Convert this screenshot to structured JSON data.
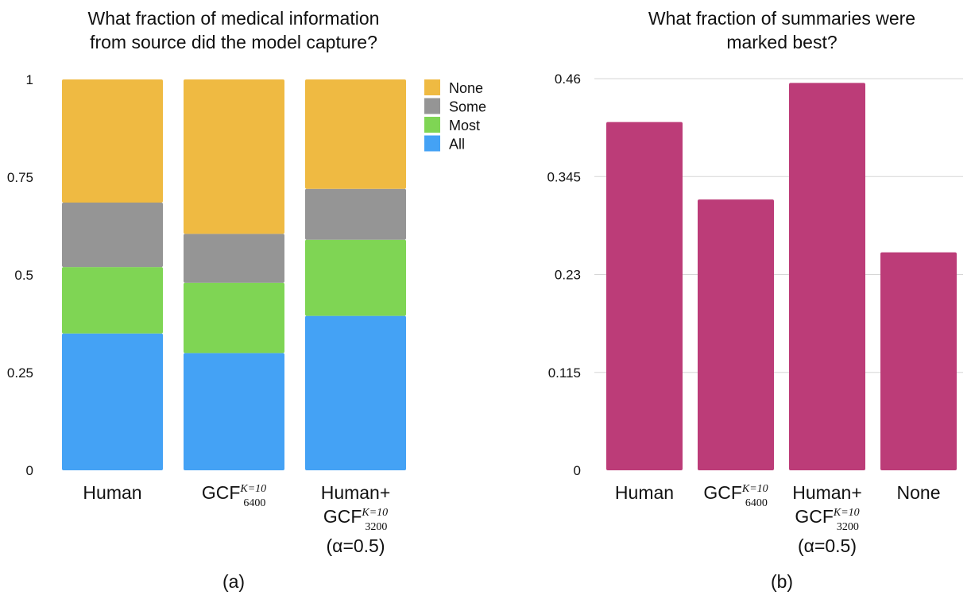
{
  "chart_data": [
    {
      "type": "bar",
      "stacked": true,
      "title": [
        "What fraction of medical information",
        "from source did the model capture?"
      ],
      "panel_label": "(a)",
      "categories": [
        {
          "parts": [
            {
              "t": "Human"
            }
          ]
        },
        {
          "parts": [
            {
              "t": "GCF"
            },
            {
              "sup": "K=10",
              "sub": "6400"
            }
          ]
        },
        {
          "parts": [
            {
              "t": "Human+"
            }
          ],
          "line2": [
            {
              "t": "GCF"
            },
            {
              "sup": "K=10",
              "sub": "3200"
            }
          ],
          "line3": "(α=0.5)"
        }
      ],
      "series": [
        {
          "name": "All",
          "color": "#44a2f5",
          "values": [
            0.35,
            0.3,
            0.395
          ]
        },
        {
          "name": "Most",
          "color": "#7fd554",
          "values": [
            0.17,
            0.18,
            0.195
          ]
        },
        {
          "name": "Some",
          "color": "#959595",
          "values": [
            0.165,
            0.125,
            0.13
          ]
        },
        {
          "name": "None",
          "color": "#efba42",
          "values": [
            0.315,
            0.395,
            0.28
          ]
        }
      ],
      "legend_order": [
        "None",
        "Some",
        "Most",
        "All"
      ],
      "ylim": [
        0,
        1
      ],
      "yticks": [
        {
          "v": 0,
          "label": "0"
        },
        {
          "v": 0.25,
          "label": "0.25"
        },
        {
          "v": 0.5,
          "label": "0.5"
        },
        {
          "v": 0.75,
          "label": "0.75"
        },
        {
          "v": 1,
          "label": "1"
        }
      ],
      "grid": false,
      "legend_position": "top-right"
    },
    {
      "type": "bar",
      "title": [
        "What fraction of summaries were",
        "marked best?"
      ],
      "panel_label": "(b)",
      "categories": [
        {
          "parts": [
            {
              "t": "Human"
            }
          ]
        },
        {
          "parts": [
            {
              "t": "GCF"
            },
            {
              "sup": "K=10",
              "sub": "6400"
            }
          ]
        },
        {
          "parts": [
            {
              "t": "Human+"
            }
          ],
          "line2": [
            {
              "t": "GCF"
            },
            {
              "sup": "K=10",
              "sub": "3200"
            }
          ],
          "line3": "(α=0.5)"
        },
        {
          "parts": [
            {
              "t": "None"
            }
          ]
        }
      ],
      "values": [
        0.409,
        0.318,
        0.455,
        0.256
      ],
      "color": "#bc3c78",
      "ylim": [
        0,
        0.46
      ],
      "yticks": [
        {
          "v": 0,
          "label": "0"
        },
        {
          "v": 0.115,
          "label": "0.115"
        },
        {
          "v": 0.23,
          "label": "0.23"
        },
        {
          "v": 0.345,
          "label": "0.345"
        },
        {
          "v": 0.46,
          "label": "0.46"
        }
      ],
      "grid": true
    }
  ]
}
